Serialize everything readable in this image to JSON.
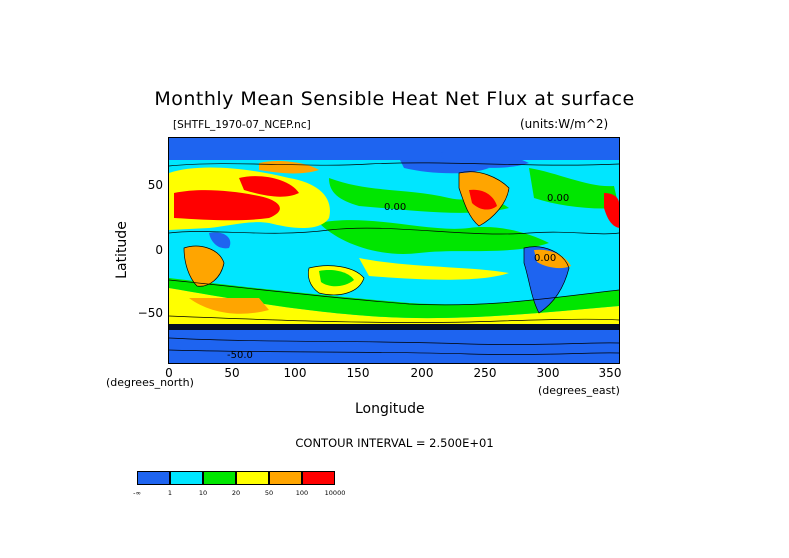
{
  "title": "Monthly Mean Sensible Heat Net Flux at surface",
  "file_label": "[SHTFL_1970-07_NCEP.nc]",
  "units_label": "(units:W/m^2)",
  "axes": {
    "x_label": "Longitude",
    "y_label": "Latitude",
    "x_unit_note": "(degrees_east)",
    "y_unit_note": "(degrees_north)",
    "x_ticks": [
      "0",
      "50",
      "100",
      "150",
      "200",
      "250",
      "300",
      "350"
    ],
    "y_ticks": [
      "50",
      "0",
      "−50"
    ],
    "x_range": [
      0,
      357
    ],
    "y_range": [
      -90,
      90
    ]
  },
  "contour_interval": "CONTOUR INTERVAL = 2.500E+01",
  "contour_labels": [
    "0.00",
    "0.00",
    "0.00",
    "-50.0"
  ],
  "legend": {
    "colors": [
      "#1e64f0",
      "#00e6ff",
      "#00e600",
      "#ffff00",
      "#ffa500",
      "#ff0000"
    ],
    "labels": [
      "-∞",
      "1",
      "10",
      "20",
      "50",
      "100",
      "10000"
    ]
  }
}
